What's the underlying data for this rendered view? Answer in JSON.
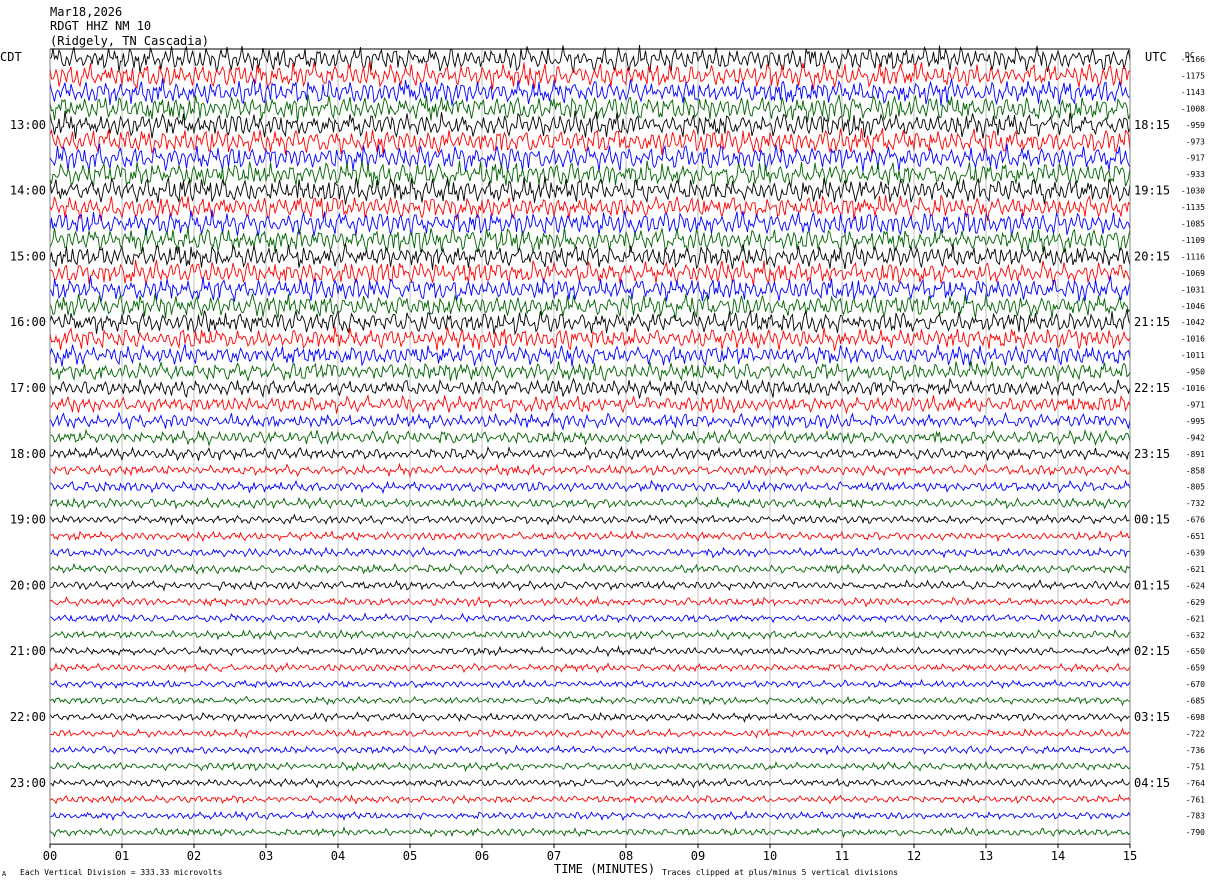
{
  "header": {
    "date": "Mar18,2026",
    "station": "RDGT HHZ NM 10",
    "location": "(Ridgely, TN Cascadia)"
  },
  "left_axis_label": "CDT",
  "right_axis_label": "UTC",
  "dc_label": "DC",
  "footer": {
    "scale_note": "Each Vertical Division =  333.33 microvolts",
    "xlabel": "TIME (MINUTES)",
    "clip_note": "Traces clipped at plus/minus 5 vertical divisions",
    "corner_mark": "A"
  },
  "colors": {
    "trace_cycle": [
      "#000000",
      "#ff0000",
      "#0000ff",
      "#006400"
    ],
    "grid": "#808080",
    "text": "#000000"
  },
  "chart_data": {
    "type": "line",
    "subtype": "helicorder",
    "xlabel": "TIME (MINUTES)",
    "xlim": [
      0,
      15
    ],
    "x_ticks": [
      "00",
      "01",
      "02",
      "03",
      "04",
      "05",
      "06",
      "07",
      "08",
      "09",
      "10",
      "11",
      "12",
      "13",
      "14",
      "15"
    ],
    "trace_minutes": 15,
    "left_hour_labels": [
      "13:00",
      "14:00",
      "15:00",
      "16:00",
      "17:00",
      "18:00",
      "19:00",
      "20:00",
      "21:00",
      "22:00",
      "23:00"
    ],
    "right_hour_labels": [
      "18:15",
      "19:15",
      "20:15",
      "21:15",
      "22:15",
      "23:15",
      "00:15",
      "01:15",
      "02:15",
      "03:15",
      "04:15"
    ],
    "dc_offsets": [
      -1166,
      -1175,
      -1143,
      -1008,
      -959,
      -973,
      -917,
      -933,
      -1030,
      -1135,
      -1085,
      -1109,
      -1116,
      -1069,
      -1031,
      -1046,
      -1042,
      -1016,
      -1011,
      -950,
      -1016,
      -971,
      -995,
      -942,
      -891,
      -858,
      -805,
      -732,
      -676,
      -651,
      -639,
      -621,
      -624,
      -629,
      -621,
      -632,
      -650,
      -659,
      -670,
      -685,
      -698,
      -722,
      -736,
      -751,
      -764,
      -761,
      -783,
      -790
    ],
    "relative_amplitude": [
      1.3,
      1.3,
      1.3,
      1.3,
      1.3,
      1.3,
      1.3,
      1.3,
      1.3,
      1.25,
      1.25,
      1.25,
      1.2,
      1.2,
      1.2,
      1.2,
      1.15,
      1.1,
      1.0,
      0.95,
      0.9,
      0.85,
      0.75,
      0.7,
      0.6,
      0.55,
      0.55,
      0.5,
      0.45,
      0.45,
      0.45,
      0.45,
      0.45,
      0.42,
      0.42,
      0.42,
      0.4,
      0.4,
      0.4,
      0.4,
      0.4,
      0.4,
      0.4,
      0.4,
      0.4,
      0.4,
      0.4,
      0.4
    ],
    "scale_microvolts_per_division": 333.33,
    "clip_divisions": 5
  }
}
